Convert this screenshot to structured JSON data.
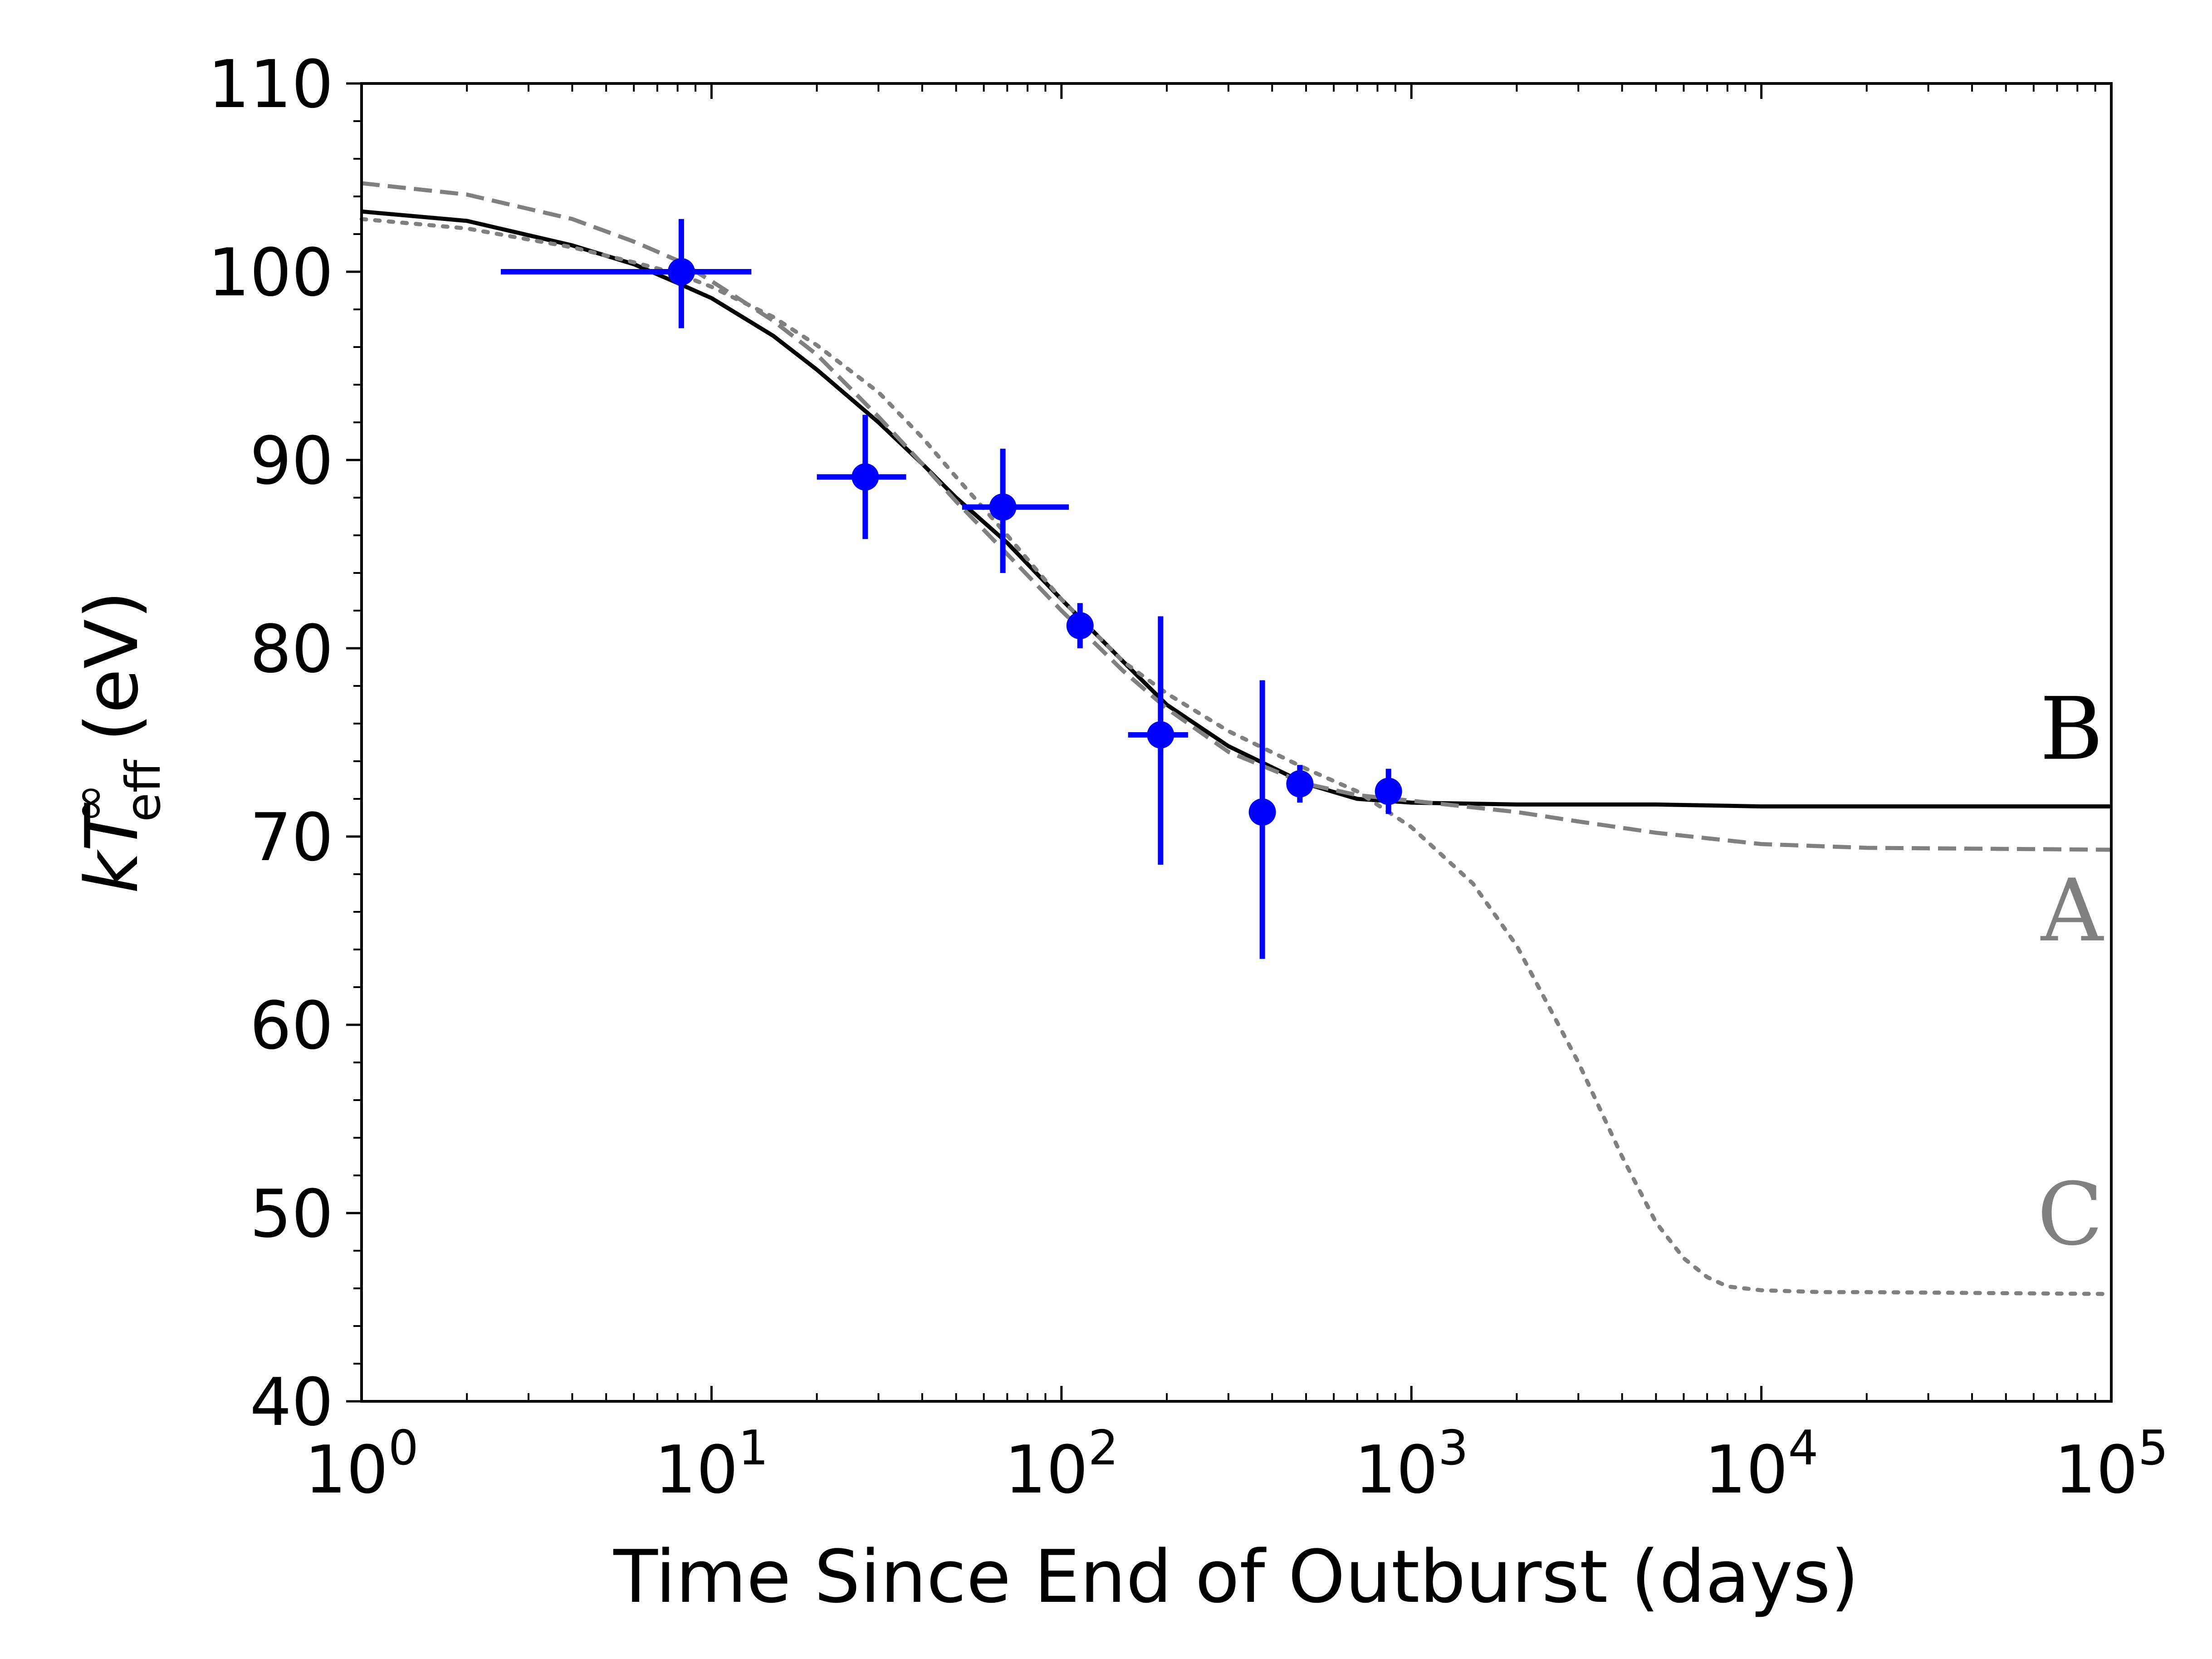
{
  "chart_data": {
    "type": "scatter",
    "title": "",
    "xlabel": "Time Since End of Outburst (days)",
    "ylabel": {
      "main": "kT",
      "superscript": "∞",
      "subscript": "eff",
      "unit": "(eV)"
    },
    "xscale": "log",
    "xlim": [
      1,
      100000
    ],
    "ylim": [
      40,
      110
    ],
    "x_ticks": [
      {
        "value": 1,
        "base": "10",
        "exp": "0"
      },
      {
        "value": 10,
        "base": "10",
        "exp": "1"
      },
      {
        "value": 100,
        "base": "10",
        "exp": "2"
      },
      {
        "value": 1000,
        "base": "10",
        "exp": "3"
      },
      {
        "value": 10000,
        "base": "10",
        "exp": "4"
      },
      {
        "value": 100000,
        "base": "10",
        "exp": "5"
      }
    ],
    "y_ticks": [
      40,
      50,
      60,
      70,
      80,
      90,
      100,
      110
    ],
    "grid": false,
    "legend": "none",
    "observations": {
      "color": "#0000ff",
      "points": [
        {
          "x": 8.2,
          "y": 100.0,
          "xerr": [
            2.5,
            13.0
          ],
          "yerr": [
            97.0,
            102.8
          ]
        },
        {
          "x": 27.5,
          "y": 89.1,
          "xerr": [
            20.0,
            36.0
          ],
          "yerr": [
            85.8,
            92.4
          ]
        },
        {
          "x": 68.0,
          "y": 87.5,
          "xerr": [
            52.0,
            105.0
          ],
          "yerr": [
            84.0,
            90.6
          ]
        },
        {
          "x": 113.0,
          "y": 81.2,
          "xerr": [
            108.0,
            118.0
          ],
          "yerr": [
            80.0,
            82.4
          ]
        },
        {
          "x": 192.0,
          "y": 75.4,
          "xerr": [
            155.0,
            230.0
          ],
          "yerr": [
            68.5,
            81.7
          ]
        },
        {
          "x": 375.0,
          "y": 71.3,
          "xerr": [
            372.0,
            378.0
          ],
          "yerr": [
            63.5,
            78.3
          ]
        },
        {
          "x": 480.0,
          "y": 72.8,
          "xerr": [
            470.0,
            490.0
          ],
          "yerr": [
            71.8,
            73.8
          ]
        },
        {
          "x": 860.0,
          "y": 72.4,
          "xerr": [
            850.0,
            870.0
          ],
          "yerr": [
            71.2,
            73.6
          ]
        }
      ]
    },
    "series": [
      {
        "name": "B",
        "style": "solid",
        "color": "#000000",
        "x": [
          1,
          2,
          4,
          6,
          8,
          10,
          15,
          20,
          30,
          40,
          50,
          70,
          100,
          150,
          200,
          300,
          500,
          700,
          1000,
          2000,
          5000,
          10000,
          100000
        ],
        "y": [
          103.2,
          102.7,
          101.4,
          100.4,
          99.4,
          98.6,
          96.6,
          94.8,
          92.0,
          89.8,
          88.0,
          85.6,
          82.6,
          79.3,
          77.0,
          74.8,
          72.8,
          72.0,
          71.8,
          71.7,
          71.7,
          71.6,
          71.6
        ]
      },
      {
        "name": "A",
        "style": "dashed",
        "color": "#808080",
        "x": [
          1,
          2,
          4,
          6,
          8,
          10,
          15,
          20,
          30,
          40,
          50,
          70,
          100,
          150,
          200,
          300,
          500,
          700,
          1000,
          2000,
          3000,
          5000,
          10000,
          20000,
          100000
        ],
        "y": [
          104.7,
          104.1,
          102.8,
          101.6,
          100.6,
          99.5,
          97.4,
          95.6,
          92.3,
          89.8,
          87.8,
          85.0,
          82.0,
          78.8,
          76.8,
          74.5,
          72.8,
          72.2,
          71.9,
          71.3,
          70.8,
          70.2,
          69.6,
          69.4,
          69.3
        ]
      },
      {
        "name": "C",
        "style": "dotted",
        "color": "#808080",
        "x": [
          1,
          2,
          4,
          6,
          8,
          10,
          15,
          20,
          30,
          40,
          50,
          70,
          100,
          150,
          200,
          300,
          500,
          700,
          1000,
          1500,
          2000,
          3000,
          4000,
          5000,
          6000,
          7000,
          8000,
          10000,
          15000,
          20000,
          100000
        ],
        "y": [
          102.8,
          102.3,
          101.3,
          100.5,
          99.9,
          99.2,
          97.6,
          96.1,
          93.6,
          91.2,
          89.1,
          86.0,
          82.6,
          79.3,
          77.6,
          75.6,
          73.6,
          72.4,
          70.5,
          67.5,
          64.2,
          58.0,
          53.0,
          49.5,
          47.6,
          46.6,
          46.1,
          45.9,
          45.8,
          45.8,
          45.7
        ]
      }
    ]
  }
}
